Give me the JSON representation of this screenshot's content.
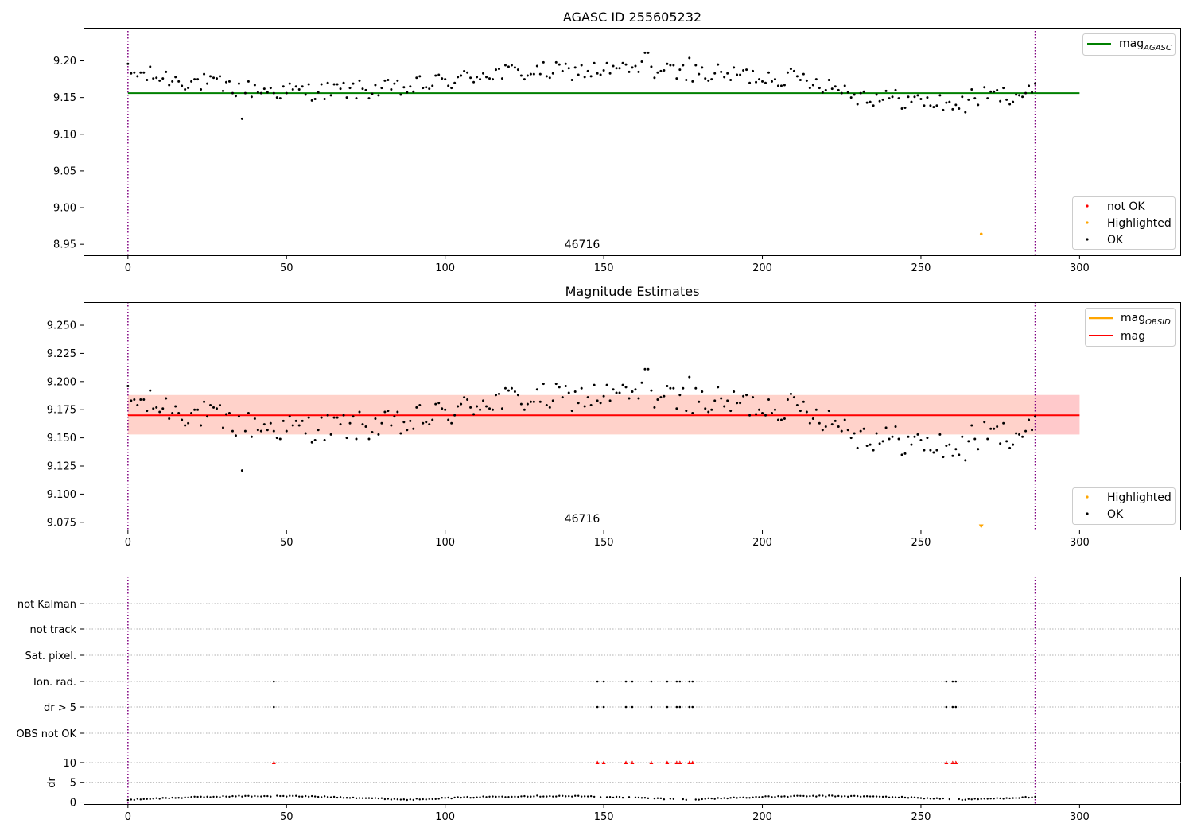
{
  "chart_data": [
    {
      "type": "scatter",
      "title": "AGASC ID 255605232",
      "xlim": [
        -14,
        332
      ],
      "ylim": [
        8.935,
        9.245
      ],
      "xticks": [
        0,
        50,
        100,
        150,
        200,
        250,
        300
      ],
      "yticks": [
        8.95,
        9.0,
        9.05,
        9.1,
        9.15,
        9.2
      ],
      "ytick_labels": [
        "8.95",
        "9.00",
        "9.05",
        "9.10",
        "9.15",
        "9.20"
      ],
      "vlines": [
        0,
        286
      ],
      "hline": {
        "label": "mag",
        "label_sub": "AGASC",
        "value": 9.156,
        "color": "#008000"
      },
      "annotation": {
        "text": "46716",
        "x": 143
      },
      "legend_top": [
        {
          "label": "mag",
          "sub": "AGASC",
          "color": "#008000",
          "kind": "line"
        }
      ],
      "legend_bottom": [
        {
          "label": "not OK",
          "color": "#ff0000",
          "kind": "dot"
        },
        {
          "label": "Highlighted",
          "color": "#ffa500",
          "kind": "dot"
        },
        {
          "label": "OK",
          "color": "#000000",
          "kind": "dot"
        }
      ],
      "highlighted_points": [
        [
          269,
          8.964
        ]
      ]
    },
    {
      "type": "scatter",
      "title": "Magnitude Estimates",
      "xlim": [
        -14,
        332
      ],
      "ylim": [
        9.0685,
        9.2705
      ],
      "xticks": [
        0,
        50,
        100,
        150,
        200,
        250,
        300
      ],
      "yticks": [
        9.075,
        9.1,
        9.125,
        9.15,
        9.175,
        9.2,
        9.225,
        9.25
      ],
      "ytick_labels": [
        "9.075",
        "9.100",
        "9.125",
        "9.150",
        "9.175",
        "9.200",
        "9.225",
        "9.250"
      ],
      "vlines": [
        0,
        286
      ],
      "band": {
        "low": 9.153,
        "high": 9.188,
        "from": 0,
        "to": 300
      },
      "band_outer": {
        "low": 9.153,
        "high": 9.188,
        "from": 286,
        "to": 300
      },
      "mag_line": {
        "value": 9.17,
        "from": 0,
        "to": 300
      },
      "annotation": {
        "text": "46716",
        "x": 143
      },
      "legend_top": [
        {
          "label": "mag",
          "sub": "OBSID",
          "color": "#ffa500",
          "kind": "line"
        },
        {
          "label": "mag",
          "sub": "",
          "color": "#ff0000",
          "kind": "line"
        }
      ],
      "legend_bottom": [
        {
          "label": "Highlighted",
          "color": "#ffa500",
          "kind": "dot"
        },
        {
          "label": "OK",
          "color": "#000000",
          "kind": "dot"
        }
      ],
      "highlighted_points": [
        [
          269,
          9.071
        ]
      ]
    },
    {
      "type": "scatter",
      "title": "",
      "xlim": [
        -14,
        332
      ],
      "xticks": [
        0,
        50,
        100,
        150,
        200,
        250,
        300
      ],
      "vlines": [
        0,
        286
      ],
      "flag_categories": [
        "not Kalman",
        "not track",
        "Sat. pixel.",
        "Ion. rad.",
        "dr > 5",
        "OBS not OK"
      ],
      "flag_points": {
        "Ion. rad.": [
          46,
          148,
          150,
          157,
          159,
          165,
          170,
          173,
          174,
          177,
          178,
          258,
          260,
          261
        ],
        "dr > 5": [
          46,
          148,
          150,
          157,
          159,
          165,
          170,
          173,
          174,
          177,
          178,
          258,
          260,
          261
        ]
      },
      "dr": {
        "ylabel": "dr",
        "ylim": [
          -0.5,
          11.0
        ],
        "yticks": [
          0,
          5,
          10
        ],
        "ytick_labels": [
          "0",
          "5",
          "10"
        ],
        "clipped_at": 10,
        "clipped_x": [
          46,
          148,
          150,
          157,
          159,
          165,
          170,
          173,
          174,
          177,
          178,
          258,
          260,
          261
        ]
      }
    }
  ]
}
